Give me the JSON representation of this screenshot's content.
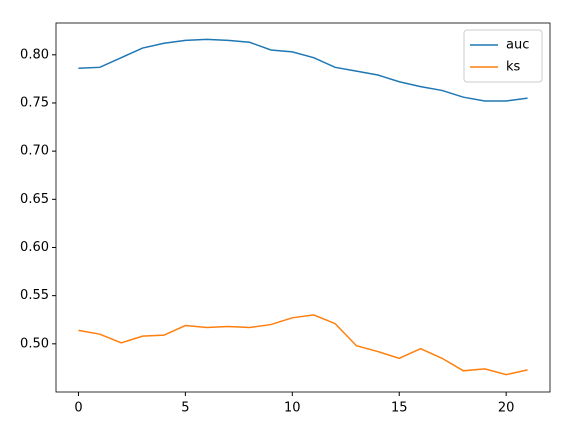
{
  "chart_data": {
    "type": "line",
    "x": [
      0,
      1,
      2,
      3,
      4,
      5,
      6,
      7,
      8,
      9,
      10,
      11,
      12,
      13,
      14,
      15,
      16,
      17,
      18,
      19,
      20,
      21
    ],
    "series": [
      {
        "name": "auc",
        "color": "#1f77b4",
        "values": [
          0.786,
          0.787,
          0.797,
          0.807,
          0.812,
          0.815,
          0.816,
          0.815,
          0.813,
          0.805,
          0.803,
          0.797,
          0.787,
          0.783,
          0.779,
          0.772,
          0.767,
          0.763,
          0.756,
          0.752,
          0.752,
          0.755
        ]
      },
      {
        "name": "ks",
        "color": "#ff7f0e",
        "values": [
          0.514,
          0.51,
          0.501,
          0.508,
          0.509,
          0.519,
          0.517,
          0.518,
          0.517,
          0.52,
          0.527,
          0.53,
          0.521,
          0.498,
          0.492,
          0.485,
          0.495,
          0.485,
          0.472,
          0.474,
          0.468,
          0.473
        ]
      }
    ],
    "xlim": [
      -1.05,
      22.05
    ],
    "xticks": [
      0,
      5,
      10,
      15,
      20
    ],
    "ylim": [
      0.45,
      0.833
    ],
    "yticks": [
      {
        "value": 0.5,
        "label": "0.50"
      },
      {
        "value": 0.55,
        "label": "0.55"
      },
      {
        "value": 0.6,
        "label": "0.60"
      },
      {
        "value": 0.65,
        "label": "0.65"
      },
      {
        "value": 0.7,
        "label": "0.70"
      },
      {
        "value": 0.75,
        "label": "0.75"
      },
      {
        "value": 0.8,
        "label": "0.80"
      }
    ],
    "legend": "upper right"
  }
}
